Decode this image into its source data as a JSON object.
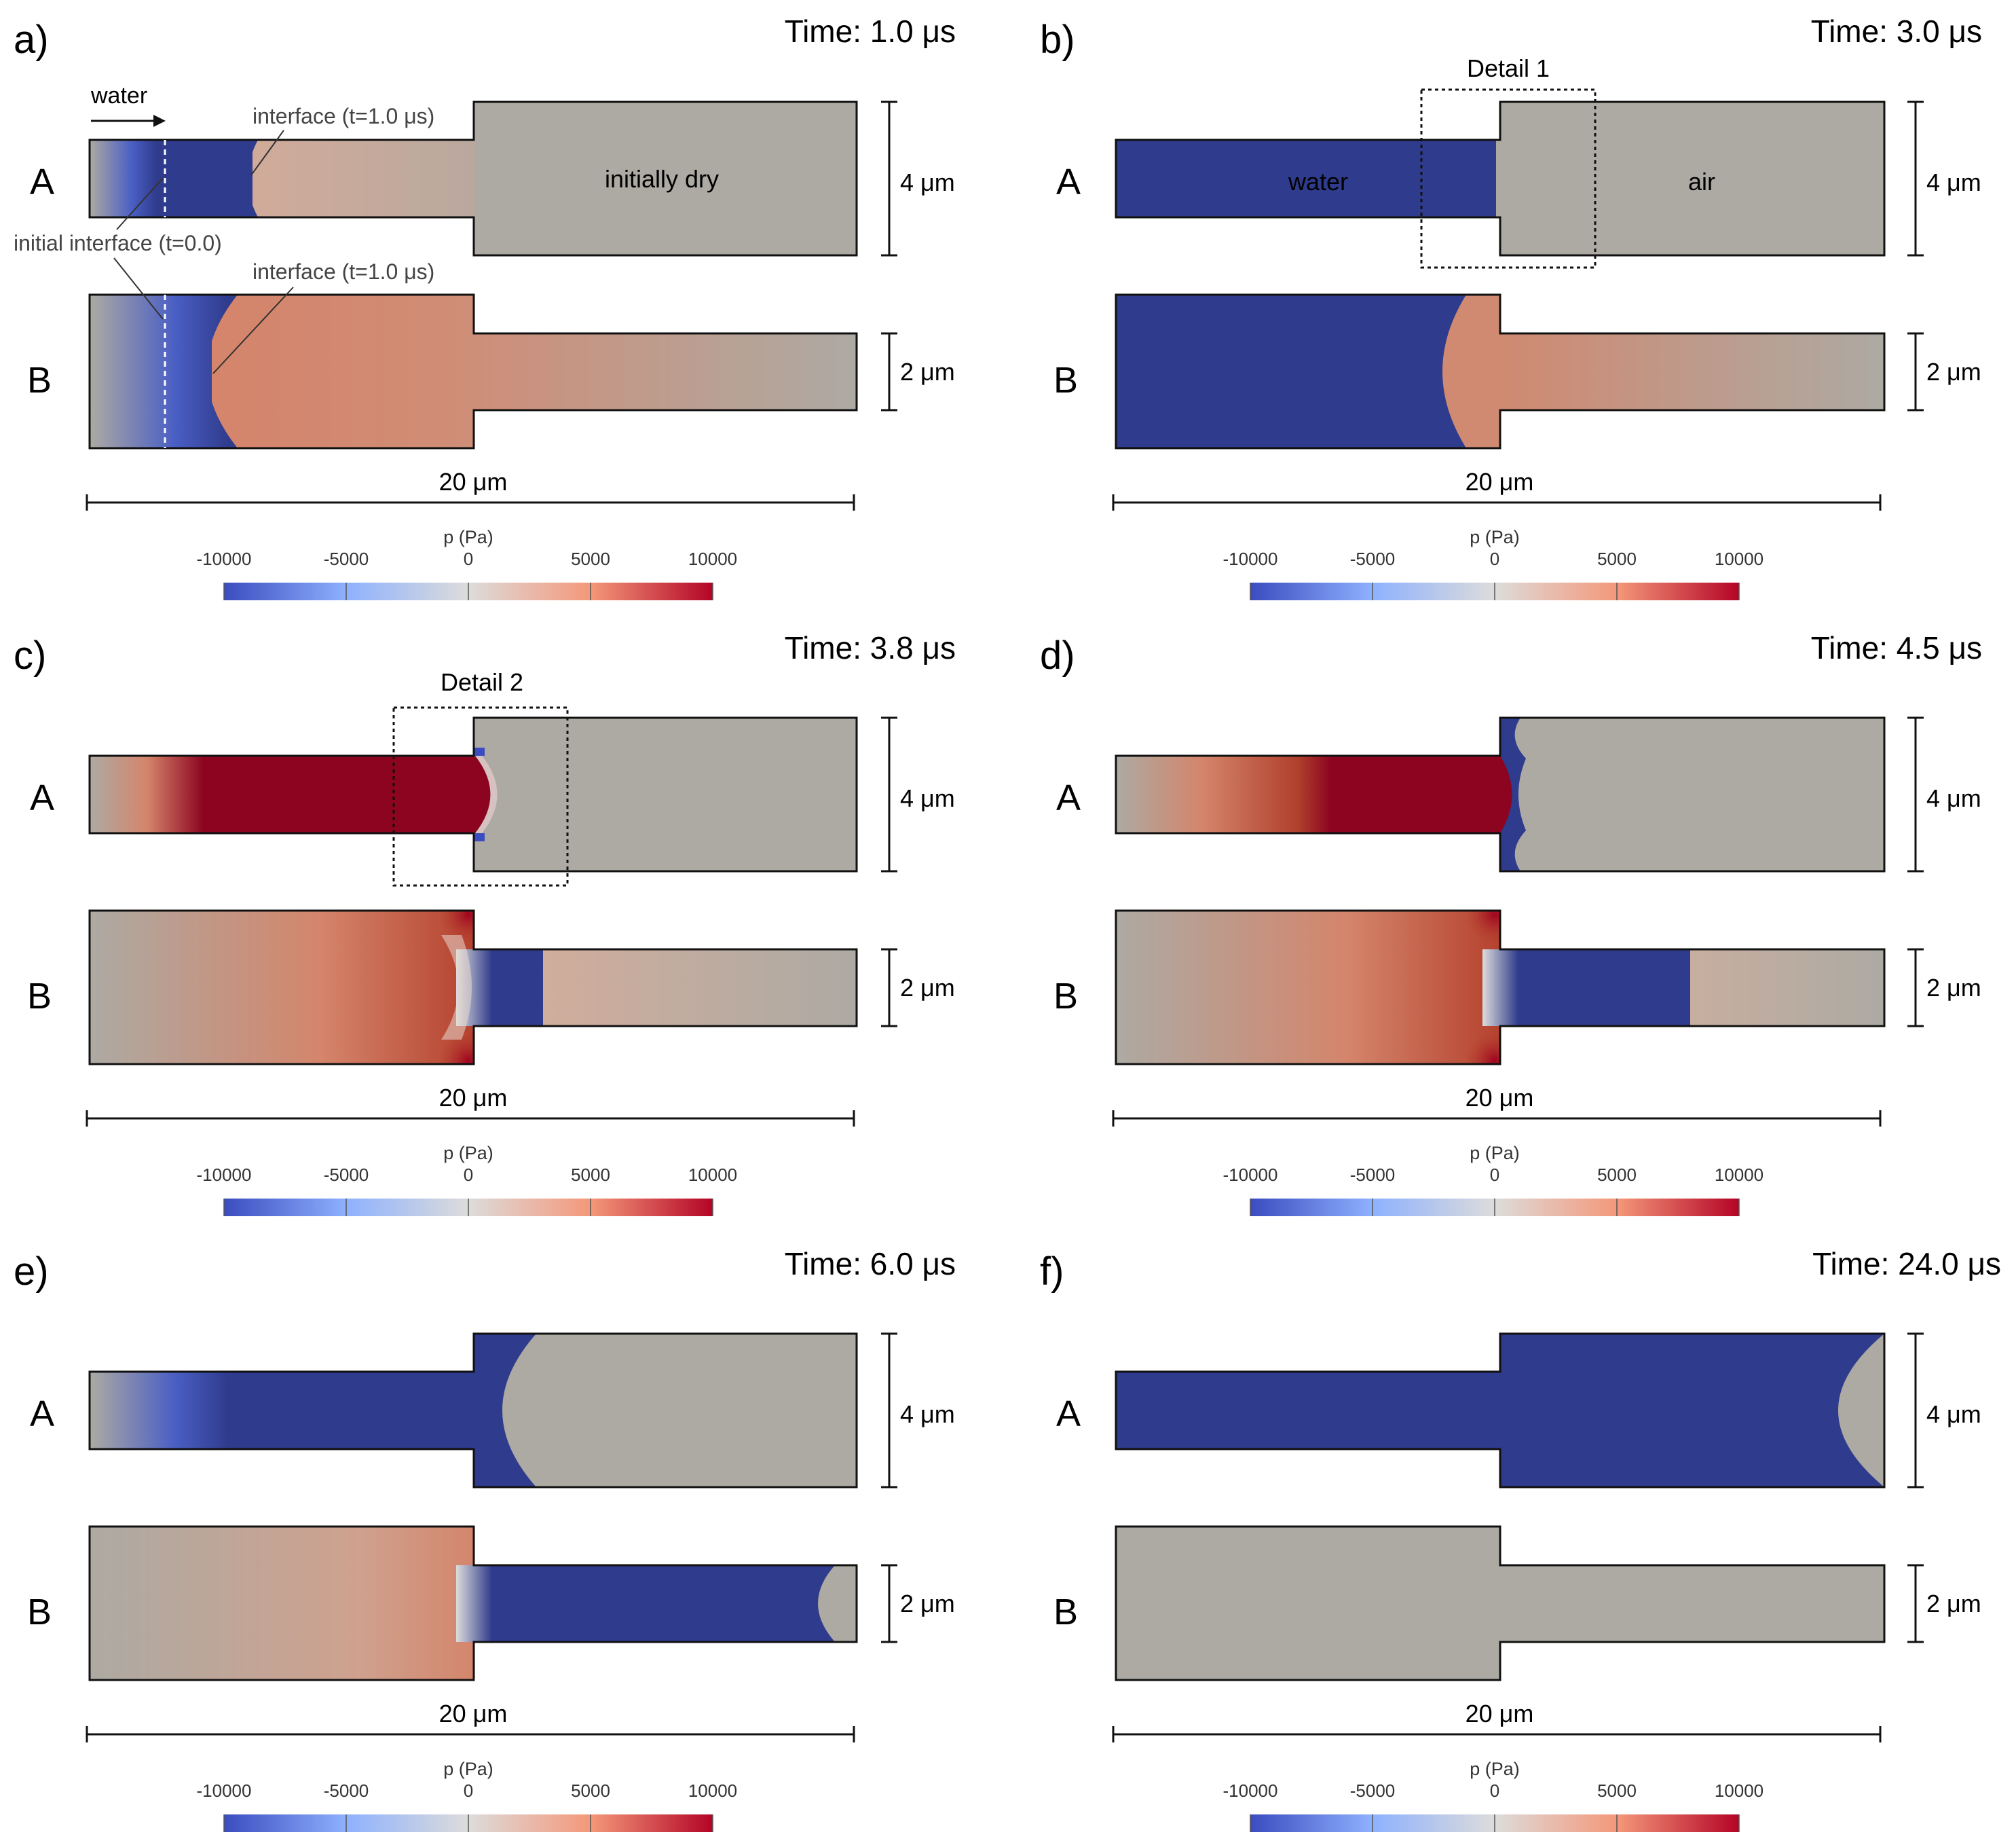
{
  "figure": {
    "colorbar": {
      "title": "p (Pa)",
      "ticks": [
        "-10000",
        "-5000",
        "0",
        "5000",
        "10000"
      ],
      "min": -10000,
      "max": 10000,
      "colors": {
        "low": "#3b4cc0",
        "mid": "#dddcdb",
        "high": "#b40426",
        "water": "#2f3b8c",
        "air": "#adaaa3",
        "peak": "#8d0420"
      }
    },
    "row_labels": {
      "a": "A",
      "b": "B"
    },
    "dims": {
      "width": "20 μm",
      "a_height": "4 μm",
      "b_height": "2 μm"
    },
    "panels": [
      {
        "letter": "a)",
        "time": "Time: 1.0 μs"
      },
      {
        "letter": "b)",
        "time": "Time: 3.0 μs"
      },
      {
        "letter": "c)",
        "time": "Time: 3.8 μs"
      },
      {
        "letter": "d)",
        "time": "Time: 4.5 μs"
      },
      {
        "letter": "e)",
        "time": "Time: 6.0 μs"
      },
      {
        "letter": "f)",
        "time": "Time: 24.0 μs"
      }
    ],
    "annotations": {
      "water_inlet": "water",
      "interface_a": "interface (t=1.0 μs)",
      "initial_interface": "initial interface (t=0.0)",
      "interface_b": "interface (t=1.0 μs)",
      "initially_dry": "initially dry",
      "water": "water",
      "air": "air",
      "detail1": "Detail 1",
      "detail2": "Detail 2"
    }
  }
}
